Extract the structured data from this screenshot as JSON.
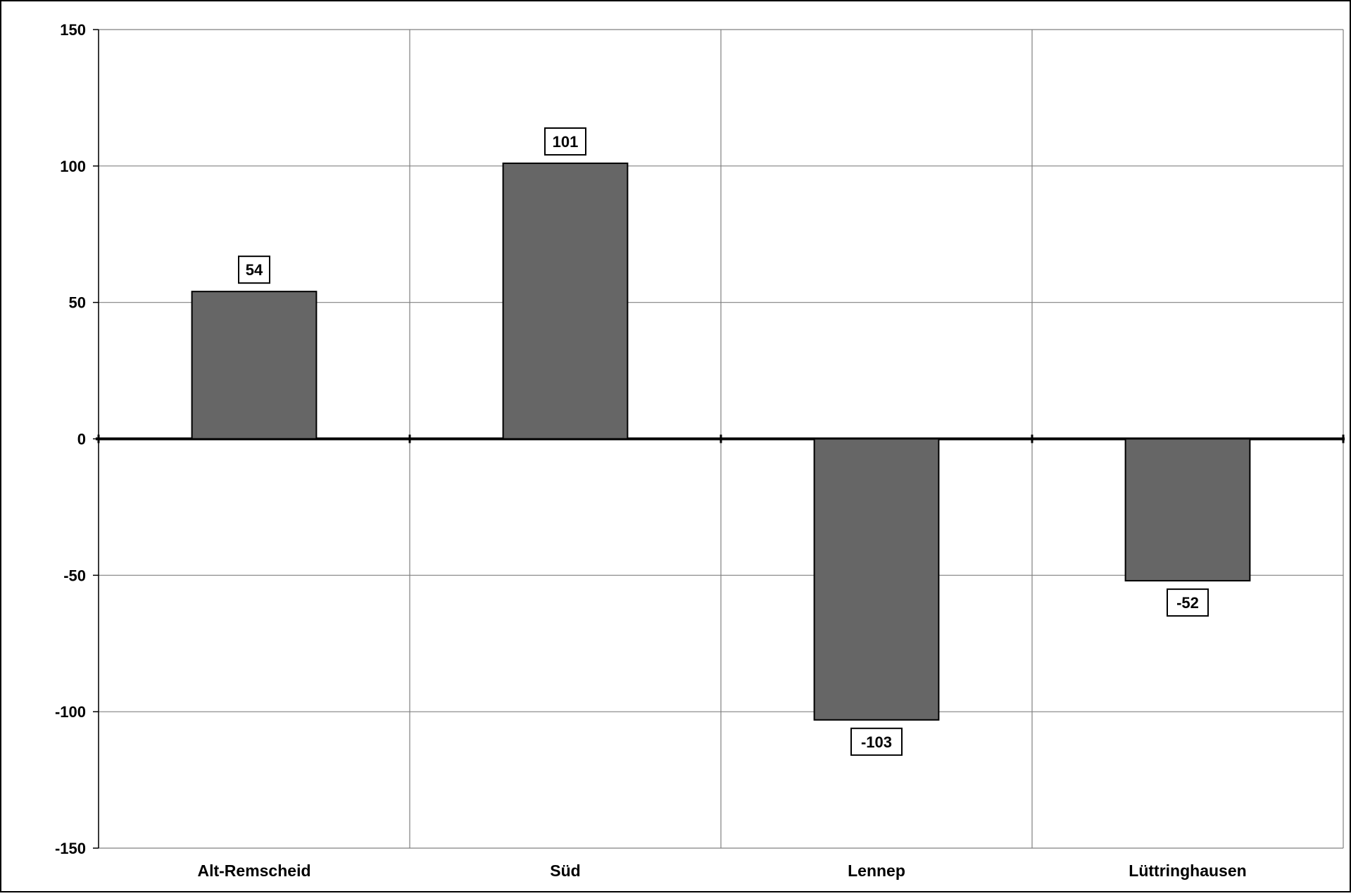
{
  "chart_data": {
    "type": "bar",
    "title": "",
    "xlabel": "",
    "ylabel": "",
    "categories": [
      "Alt-Remscheid",
      "Süd",
      "Lennep",
      "Lüttringhausen"
    ],
    "values": [
      54,
      101,
      -103,
      -52
    ],
    "value_labels": [
      "54",
      "101",
      "-103",
      "-52"
    ],
    "ylim": [
      -150,
      150
    ],
    "yticks": [
      150,
      100,
      50,
      0,
      -50,
      -100,
      -150
    ],
    "ytick_labels": [
      "150",
      "100",
      "50",
      "0",
      "-50",
      "-100",
      "-150"
    ],
    "grid": true,
    "legend": "none",
    "colors": {
      "bar": "#666666",
      "bar_border": "#000000",
      "grid": "#808080",
      "axis": "#000000",
      "background": "#ffffff"
    }
  }
}
